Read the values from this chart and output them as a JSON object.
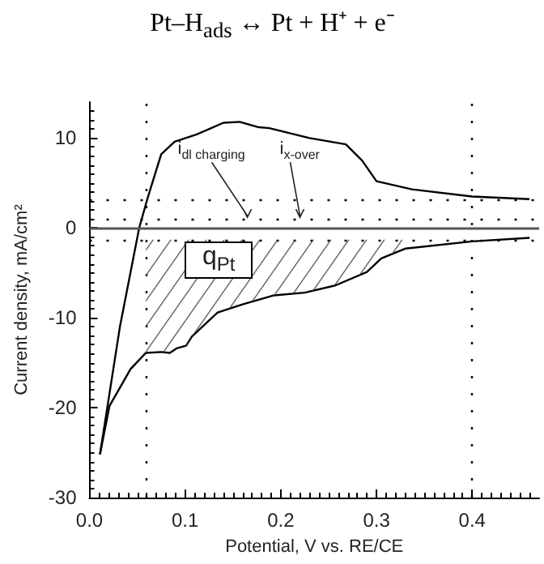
{
  "chart_data": {
    "type": "line",
    "title": "Pt–H$_{ads}$ ↔ Pt + H⁺ + e⁻",
    "xlabel": "Potential, V vs. RE/CE",
    "ylabel": "Current density, mA/cm²",
    "xlim": [
      0,
      0.47
    ],
    "ylim": [
      -30,
      14
    ],
    "xticks": [
      {
        "value": 0,
        "label": "0.0"
      },
      {
        "value": 0.1,
        "label": "0.1"
      },
      {
        "value": 0.2,
        "label": "0.2"
      },
      {
        "value": 0.3,
        "label": "0.3"
      },
      {
        "value": 0.4,
        "label": "0.4"
      }
    ],
    "yticks": [
      -30,
      -20,
      -10,
      0,
      10
    ],
    "marker": "none",
    "line_style": "solid",
    "grid": false,
    "series": [
      {
        "color": "#000000",
        "x": [
          0.011,
          0.032,
          0.052,
          0.061,
          0.075,
          0.089,
          0.112,
          0.14,
          0.157,
          0.177,
          0.188,
          0.23,
          0.268,
          0.285,
          0.3,
          0.337,
          0.4,
          0.46
        ],
        "values": [
          -25.2,
          -10.9,
          0,
          3.4,
          8.2,
          9.6,
          10.4,
          11.7,
          11.8,
          11.2,
          11.1,
          10,
          9.3,
          7.5,
          5.2,
          4.3,
          3.5,
          3.2
        ]
      },
      {
        "color": "#000000",
        "x": [
          0.46,
          0.4,
          0.33,
          0.305,
          0.29,
          0.257,
          0.225,
          0.193,
          0.16,
          0.134,
          0.107,
          0.101,
          0.091,
          0.084,
          0.075,
          0.059,
          0.043,
          0.021,
          0.011
        ],
        "values": [
          -1.1,
          -1.5,
          -2.3,
          -3.4,
          -4.9,
          -6.4,
          -7.2,
          -7.5,
          -8.5,
          -9.4,
          -12.1,
          -13.1,
          -13.4,
          -13.9,
          -13.8,
          -13.9,
          -15.7,
          -19.8,
          -25.2
        ],
        "lower": [
          null,
          null,
          -2.3,
          -3.4,
          -4.9,
          -6.4,
          -7.2,
          -7.5,
          -8.5,
          -9.4,
          -12.1,
          -13.1,
          -13.4,
          -13.9,
          -13.8,
          -13.9,
          null,
          null,
          null
        ],
        "upper": [
          null,
          null,
          -1.3,
          -1.3,
          -1.3,
          -1.3,
          -1.3,
          -1.3,
          -1.3,
          -1.3,
          -1.3,
          -1.3,
          -1.3,
          -1.3,
          -1.3,
          -1.3,
          null,
          null,
          null
        ]
      }
    ],
    "ref_lines": [
      {
        "axis": "y",
        "value": 0,
        "line_style": "solid"
      },
      {
        "axis": "y",
        "value": 3.2,
        "line_style": "dotted"
      },
      {
        "axis": "y",
        "value": 1,
        "line_style": "dotted"
      },
      {
        "axis": "y",
        "value": -1.3,
        "line_style": "dotted"
      },
      {
        "axis": "x",
        "value": 0.06,
        "line_style": "dotted"
      },
      {
        "axis": "x",
        "value": 0.4,
        "line_style": "dotted"
      }
    ],
    "annotations": [
      {
        "text": "i$_{dl charging}$",
        "x": 0.165,
        "y": 1
      },
      {
        "text": "i$_{x-over}$",
        "x": 0.22,
        "y": 1
      },
      "q$_{Pt}$"
    ]
  }
}
